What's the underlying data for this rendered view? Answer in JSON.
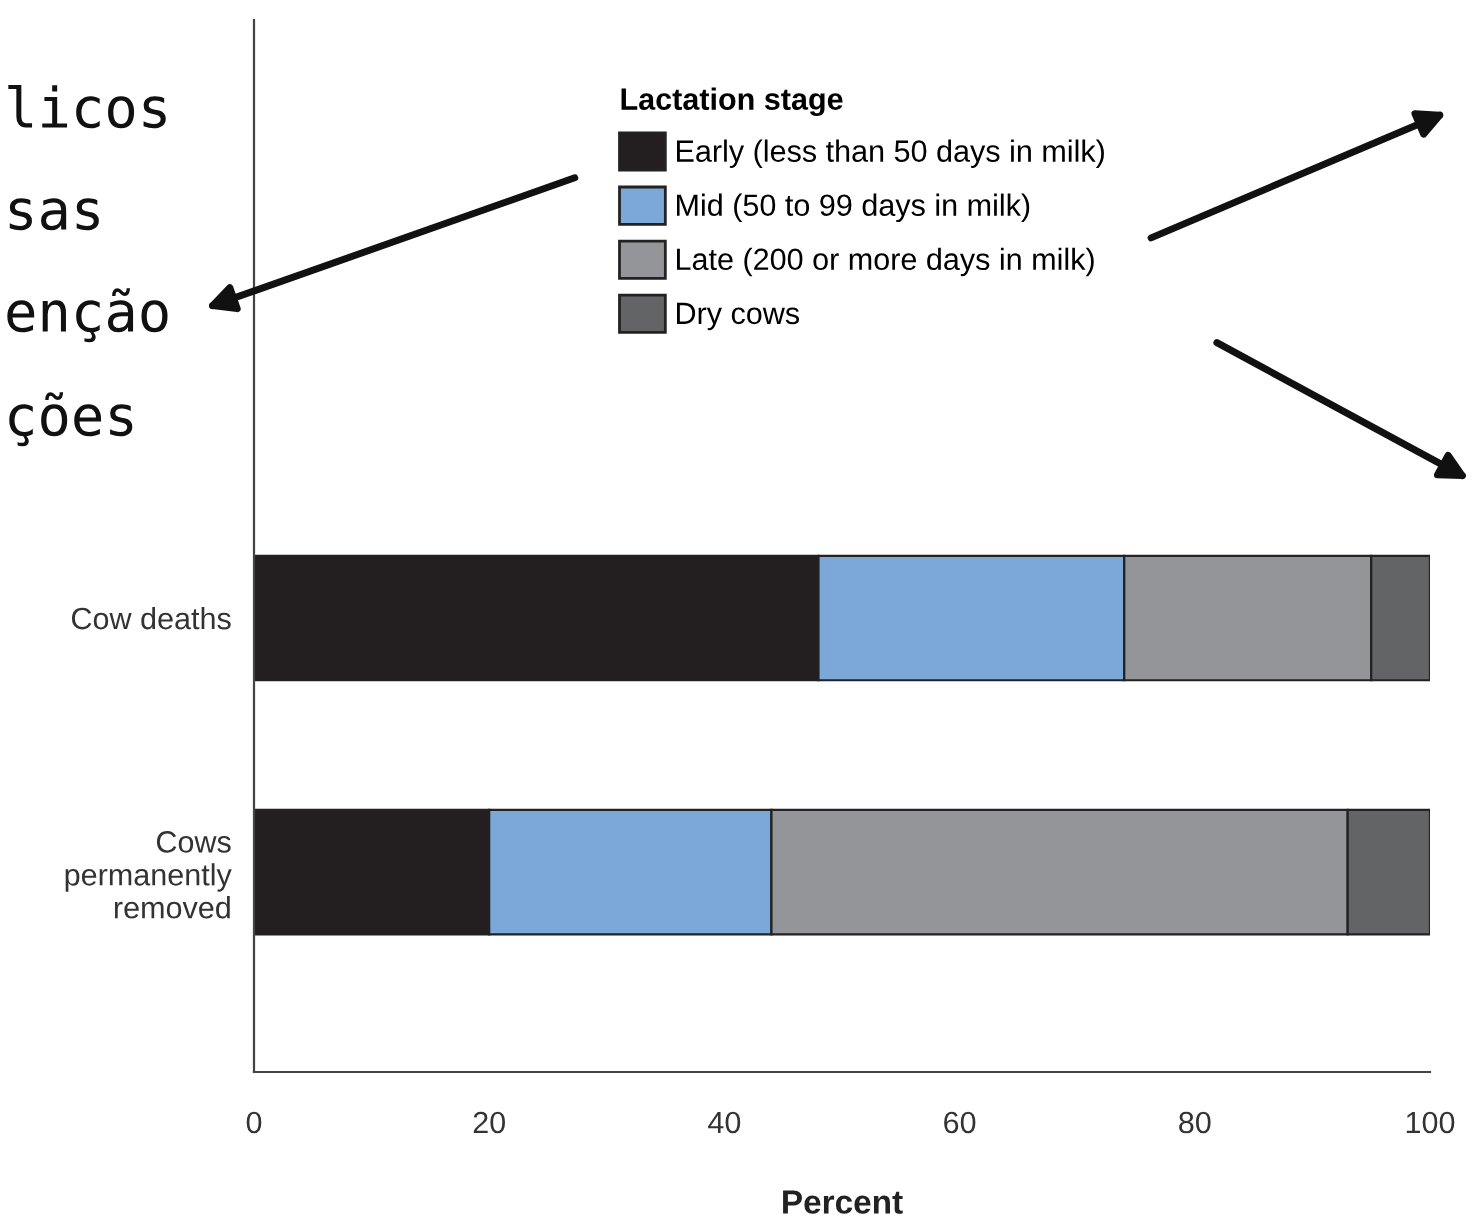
{
  "chart_data": {
    "type": "bar",
    "orientation": "horizontal",
    "stacked": true,
    "categories": [
      "Cow deaths",
      "Cows\npermanently\nremoved"
    ],
    "series": [
      {
        "name": "Early (less than 50 days in milk)",
        "color": "#231f20",
        "values": [
          48,
          20
        ]
      },
      {
        "name": "Mid (50 to 99 days in milk)",
        "color": "#7ba7d9",
        "values": [
          26,
          24
        ]
      },
      {
        "name": "Late (200 or more days in milk)",
        "color": "#939598",
        "values": [
          21,
          49
        ]
      },
      {
        "name": "Dry cows",
        "color": "#636466",
        "values": [
          5,
          7
        ]
      }
    ],
    "legend_title": "Lactation stage",
    "legend": "top",
    "xlabel": "Percent",
    "xlim": [
      0,
      100
    ],
    "xticks": [
      0,
      20,
      40,
      60,
      80,
      100
    ],
    "grid": false,
    "annotations": [
      "licos",
      "sas",
      "enção",
      "ções"
    ]
  }
}
